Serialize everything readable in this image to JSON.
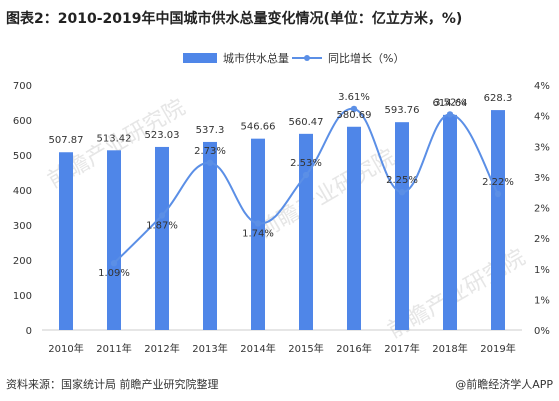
{
  "title": "图表2：2010-2019年中国城市供水总量变化情况(单位：亿立方米，%)",
  "footer": {
    "source": "资料来源：国家统计局 前瞻产业研究院整理",
    "credit": "@前瞻经济学人APP"
  },
  "watermark": "前瞻产业研究院",
  "colors": {
    "bar": "#4f86e8",
    "line": "#5b8fe6",
    "text": "#333333",
    "axis": "#cccccc"
  },
  "chart_data": {
    "type": "bar+line",
    "categories": [
      "2010年",
      "2011年",
      "2012年",
      "2013年",
      "2014年",
      "2015年",
      "2016年",
      "2017年",
      "2018年",
      "2019年"
    ],
    "series": [
      {
        "name": "城市供水总量",
        "type": "bar",
        "axis": "left",
        "values": [
          507.87,
          513.42,
          523.03,
          537.3,
          546.66,
          560.47,
          580.69,
          593.76,
          614.64,
          628.3
        ],
        "labels": [
          "507.87",
          "513.42",
          "523.03",
          "537.3",
          "546.66",
          "560.47",
          "580.69",
          "593.76",
          "614.64",
          "628.3"
        ]
      },
      {
        "name": "同比增长（%）",
        "type": "line",
        "axis": "right",
        "values": [
          null,
          1.09,
          1.87,
          2.73,
          1.74,
          2.53,
          3.61,
          2.25,
          3.52,
          2.22
        ],
        "labels": [
          "",
          "1.09%",
          "1.87%",
          "2.73%",
          "1.74%",
          "2.53%",
          "3.61%",
          "2.25%",
          "3.52%",
          "2.22%"
        ]
      }
    ],
    "y_left": {
      "min": 0,
      "max": 700,
      "ticks": [
        "0",
        "100",
        "200",
        "300",
        "400",
        "500",
        "600",
        "700"
      ]
    },
    "y_right": {
      "min": 0,
      "max": 4,
      "ticks": [
        "0%",
        "1%",
        "1%",
        "2%",
        "2%",
        "3%",
        "3%",
        "4%",
        "4%"
      ]
    },
    "legend_position": "top-center"
  }
}
